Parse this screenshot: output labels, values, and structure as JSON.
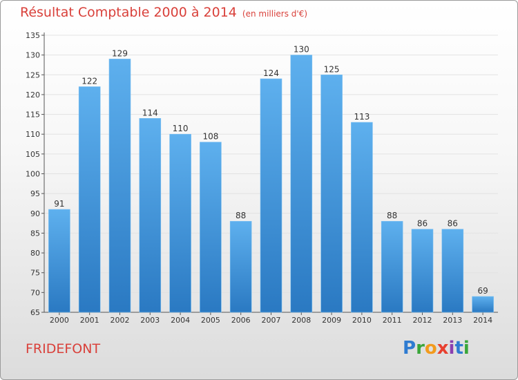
{
  "header": {
    "title": "Résultat Comptable 2000 à 2014",
    "subtitle": "(en milliers d'€)"
  },
  "footer": {
    "city": "FRIDEFONT",
    "logo_letters": [
      "P",
      "r",
      "o",
      "x",
      "i",
      "t",
      "i"
    ],
    "logo_colors": [
      "#2e7bd1",
      "#3aa63a",
      "#f29b1d",
      "#e8402f",
      "#8a3fb0",
      "#2e7bd1",
      "#3aa63a"
    ]
  },
  "chart_data": {
    "type": "bar",
    "title": "Résultat Comptable 2000 à 2014",
    "subtitle": "(en milliers d'€)",
    "categories": [
      "2000",
      "2001",
      "2002",
      "2003",
      "2004",
      "2005",
      "2006",
      "2007",
      "2008",
      "2009",
      "2010",
      "2011",
      "2012",
      "2013",
      "2014"
    ],
    "values": [
      91,
      122,
      129,
      114,
      110,
      108,
      88,
      124,
      130,
      125,
      113,
      88,
      86,
      86,
      69
    ],
    "ylim": [
      65,
      135
    ],
    "yticks": [
      65,
      70,
      75,
      80,
      85,
      90,
      95,
      100,
      105,
      110,
      115,
      120,
      125,
      130,
      135
    ],
    "grid": true,
    "bar_color": "#4a9ee0",
    "bar_color_dark": "#2a79c2"
  }
}
